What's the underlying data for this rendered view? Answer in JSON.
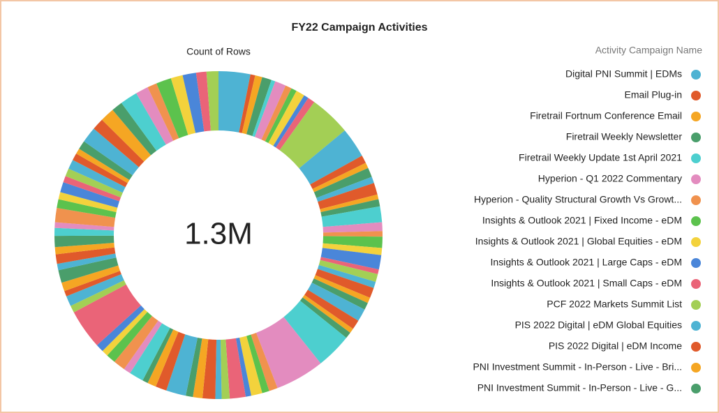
{
  "chart_data": {
    "type": "donut",
    "title": "FY22 Campaign Activities",
    "subtitle": "Count of Rows",
    "legend_title": "Activity Campaign Name",
    "total_label": "1.3M",
    "categories": [
      "Digital PNI Summit | EDMs",
      "Email Plug-in",
      "Firetrail Fortnum Conference Email",
      "Firetrail Weekly Newsletter",
      "Firetrail Weekly Update 1st April 2021",
      "Hyperion - Q1 2022 Commentary",
      "Hyperion - Quality Structural Growth Vs Growt...",
      "Insights & Outlook 2021 | Fixed Income - eDM",
      "Insights & Outlook 2021 | Global Equities - eDM",
      "Insights & Outlook 2021 | Large Caps  - eDM",
      "Insights & Outlook 2021 | Small Caps  - eDM",
      "PCF 2022 Markets Summit List",
      "PIS 2022 Digital | eDM Global Equities",
      "PIS 2022 Digital | eDM Income",
      "PNI Investment Summit - In-Person - Live - Bri...",
      "PNI Investment Summit - In-Person - Live - G...",
      null,
      null,
      null,
      null,
      null,
      null,
      null,
      null,
      null,
      null,
      null,
      null,
      null,
      null,
      null,
      null,
      null,
      null,
      null,
      null,
      null,
      null,
      null,
      null,
      null,
      null,
      null,
      null,
      null,
      null,
      null,
      null,
      null,
      null,
      null,
      null,
      null,
      null,
      null,
      null,
      null,
      null,
      null,
      null,
      null,
      null,
      null,
      null,
      null,
      null,
      null,
      null,
      null,
      null,
      null,
      null,
      null,
      null,
      null,
      null,
      null,
      null,
      null,
      null,
      null,
      null,
      null,
      null,
      null,
      null,
      null,
      null,
      null,
      null,
      null,
      null
    ],
    "values": [
      40000,
      6000,
      9000,
      12000,
      5000,
      14000,
      8000,
      7000,
      11000,
      6000,
      9000,
      52000,
      38000,
      10000,
      7000,
      12000,
      8000,
      15000,
      6000,
      9000,
      20000,
      11000,
      7000,
      14000,
      9000,
      18000,
      6000,
      10000,
      8000,
      13000,
      7000,
      9000,
      16000,
      12000,
      6000,
      8000,
      45000,
      62000,
      11000,
      9000,
      14000,
      7000,
      20000,
      10000,
      8000,
      16000,
      12000,
      9000,
      25000,
      14000,
      11000,
      7000,
      18000,
      9000,
      15000,
      12000,
      8000,
      10000,
      50000,
      9000,
      13000,
      7000,
      11000,
      16000,
      8000,
      12000,
      9000,
      14000,
      10000,
      7000,
      18000,
      11000,
      9000,
      13000,
      8000,
      10000,
      12000,
      9000,
      7000,
      11000,
      20000,
      15000,
      18000,
      14000,
      22000,
      16000,
      12000,
      19000,
      15000,
      17000,
      13000,
      15000
    ],
    "colors": [
      "#4eb3d3",
      "#e05a2b",
      "#f5a623",
      "#4a9e6b",
      "#4dcfcf",
      "#e38cbf",
      "#f0924e",
      "#5cc24d",
      "#f3d23c",
      "#4a86d9",
      "#ea6478",
      "#a3cf55",
      "#4eb3d3",
      "#e05a2b",
      "#f5a623",
      "#4a9e6b"
    ]
  }
}
